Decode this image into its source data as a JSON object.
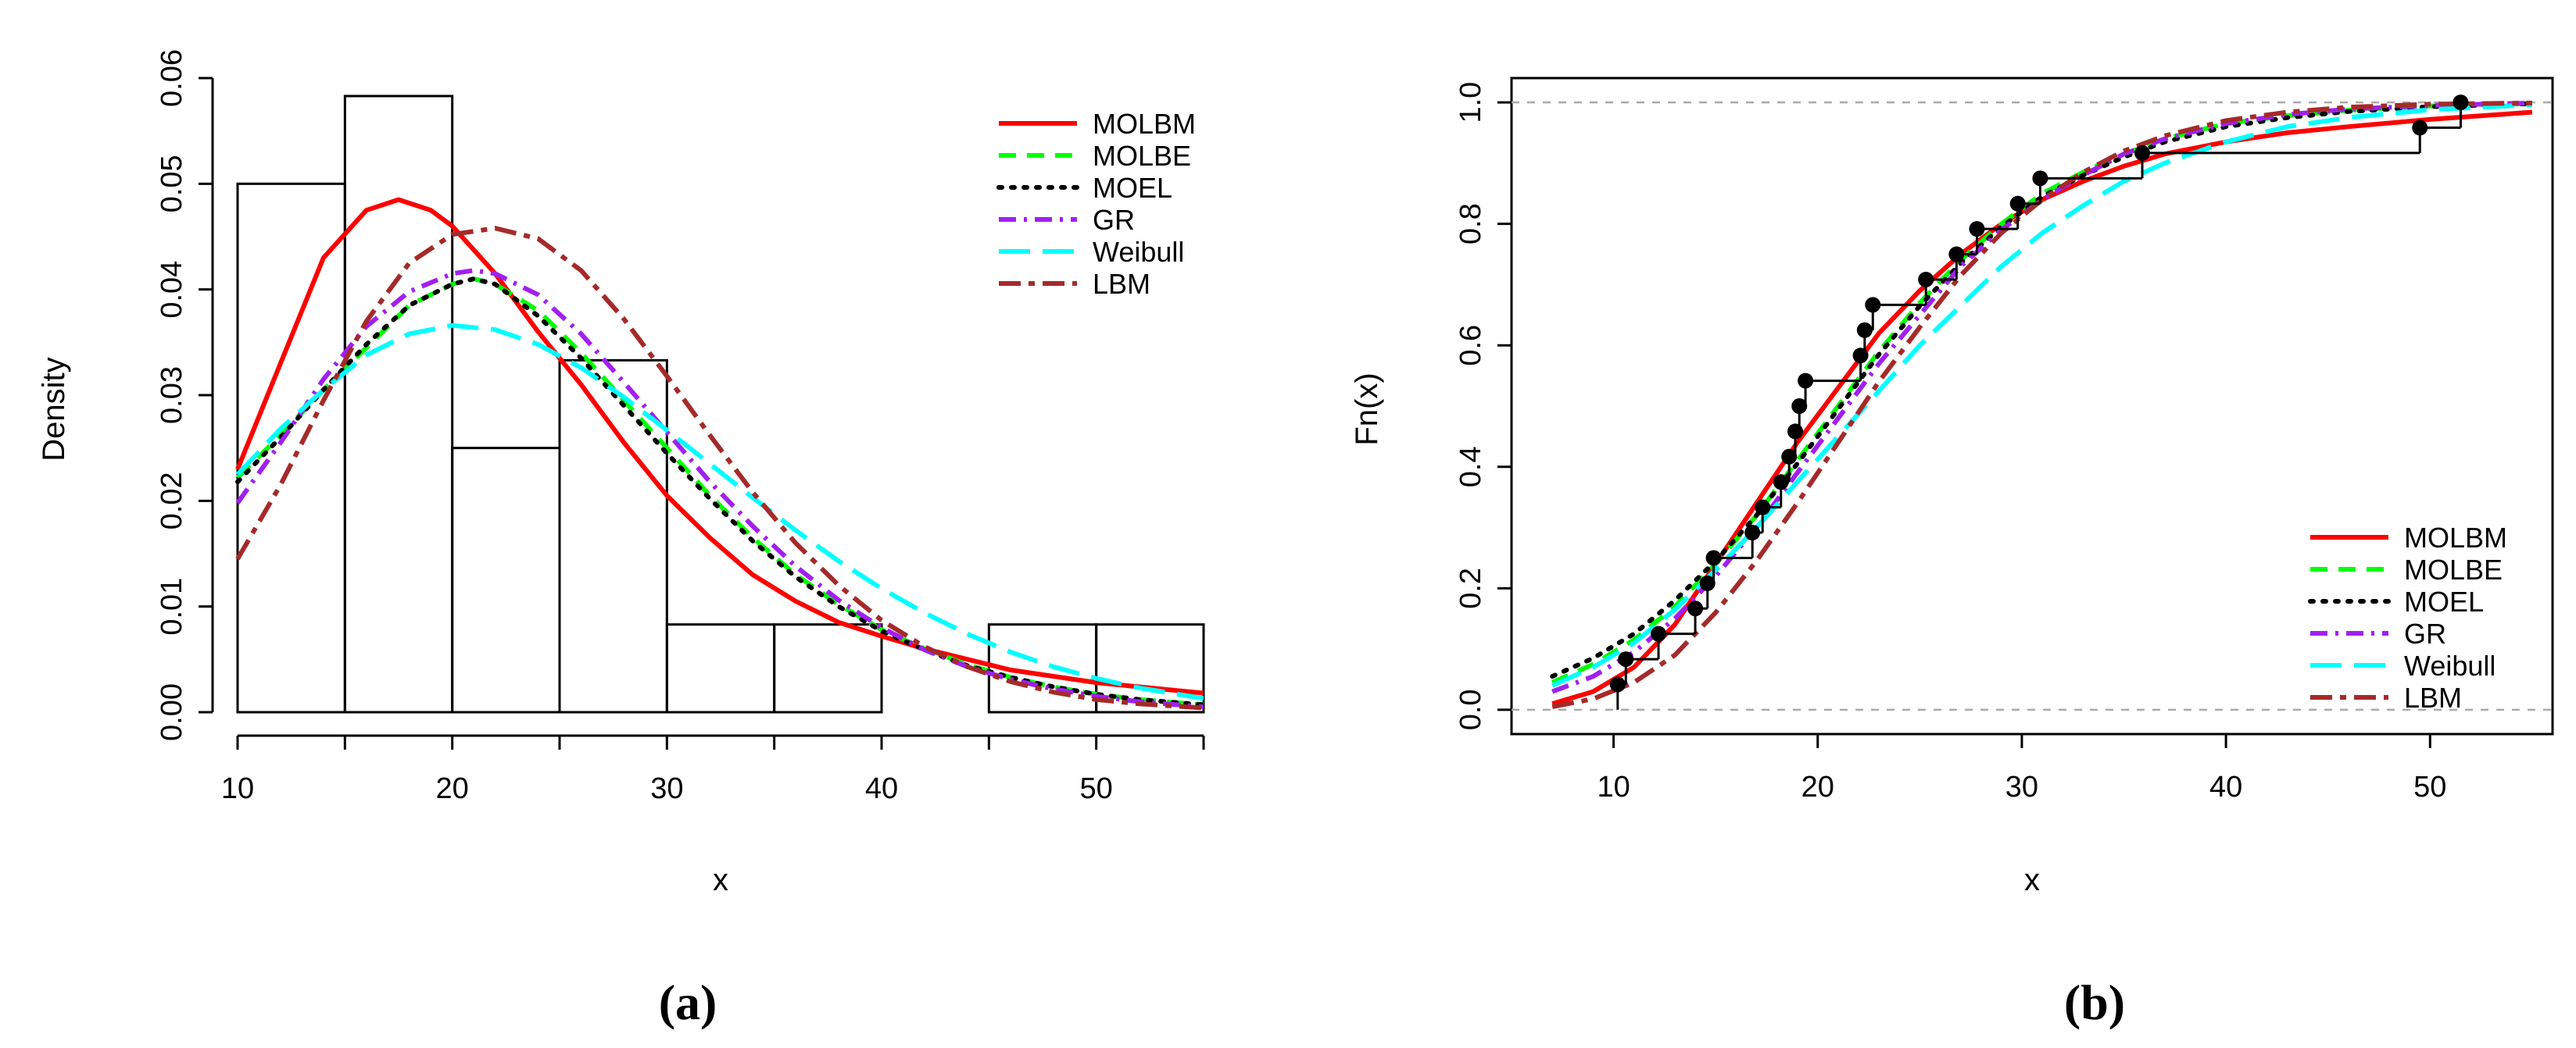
{
  "chart_data": [
    {
      "id": "a",
      "type": "histogram",
      "caption": "(a)",
      "xlabel": "x",
      "ylabel": "Density",
      "xlim": [
        10,
        55
      ],
      "ylim": [
        0,
        0.06
      ],
      "x_ticks": [
        10,
        20,
        30,
        40,
        50
      ],
      "y_ticks": [
        "0.00",
        "0.01",
        "0.02",
        "0.03",
        "0.04",
        "0.05",
        "0.06"
      ],
      "legend_position": "top-right",
      "bins": [
        {
          "from": 10,
          "to": 15,
          "density": 0.05
        },
        {
          "from": 15,
          "to": 20,
          "density": 0.0583
        },
        {
          "from": 20,
          "to": 25,
          "density": 0.025
        },
        {
          "from": 25,
          "to": 30,
          "density": 0.0333
        },
        {
          "from": 30,
          "to": 35,
          "density": 0.0083
        },
        {
          "from": 35,
          "to": 40,
          "density": 0.0083
        },
        {
          "from": 40,
          "to": 45,
          "density": 0.0
        },
        {
          "from": 45,
          "to": 50,
          "density": 0.0083
        },
        {
          "from": 50,
          "to": 55,
          "density": 0.0083
        }
      ],
      "series": [
        {
          "name": "MOLBM",
          "color": "#ff0000",
          "style": "solid",
          "x": [
            10,
            12,
            14,
            16,
            17.5,
            19,
            20,
            22,
            24,
            26,
            28,
            30,
            32,
            34,
            36,
            38,
            40,
            42,
            44,
            46,
            48,
            50,
            52,
            55
          ],
          "y": [
            0.023,
            0.033,
            0.043,
            0.0475,
            0.0485,
            0.0475,
            0.046,
            0.0415,
            0.036,
            0.031,
            0.0255,
            0.0205,
            0.0165,
            0.013,
            0.0105,
            0.0085,
            0.0072,
            0.006,
            0.005,
            0.004,
            0.0034,
            0.0028,
            0.0024,
            0.0018
          ]
        },
        {
          "name": "MOLBE",
          "color": "#00ff00",
          "style": "dashed",
          "x": [
            10,
            12,
            14,
            16,
            18,
            20,
            21,
            22,
            24,
            26,
            28,
            30,
            32,
            34,
            36,
            38,
            40,
            42,
            44,
            46,
            48,
            50,
            52,
            55
          ],
          "y": [
            0.0222,
            0.0262,
            0.0305,
            0.0345,
            0.0385,
            0.0405,
            0.041,
            0.0405,
            0.038,
            0.034,
            0.0295,
            0.025,
            0.0205,
            0.0165,
            0.013,
            0.0102,
            0.0078,
            0.006,
            0.0045,
            0.0033,
            0.0024,
            0.0017,
            0.0012,
            0.0007
          ]
        },
        {
          "name": "MOEL",
          "color": "#000000",
          "style": "dotted",
          "x": [
            10,
            12,
            14,
            16,
            18,
            20,
            21,
            22,
            24,
            26,
            28,
            30,
            32,
            34,
            36,
            38,
            40,
            42,
            44,
            46,
            48,
            50,
            52,
            55
          ],
          "y": [
            0.0218,
            0.026,
            0.0305,
            0.0348,
            0.0385,
            0.0405,
            0.041,
            0.0405,
            0.0375,
            0.0335,
            0.029,
            0.0245,
            0.0202,
            0.0162,
            0.0128,
            0.01,
            0.0077,
            0.0059,
            0.0044,
            0.0033,
            0.0024,
            0.0017,
            0.0012,
            0.0007
          ]
        },
        {
          "name": "GR",
          "color": "#a020f0",
          "style": "dashdot",
          "x": [
            10,
            12,
            14,
            16,
            18,
            20,
            21,
            22,
            24,
            26,
            28,
            30,
            32,
            34,
            36,
            38,
            40,
            42,
            44,
            46,
            48,
            50,
            52,
            55
          ],
          "y": [
            0.0198,
            0.0255,
            0.0315,
            0.0365,
            0.0398,
            0.0415,
            0.0418,
            0.0415,
            0.0395,
            0.0358,
            0.0312,
            0.0265,
            0.0218,
            0.0176,
            0.0138,
            0.0106,
            0.008,
            0.0059,
            0.0043,
            0.0031,
            0.0022,
            0.0015,
            0.001,
            0.0005
          ]
        },
        {
          "name": "Weibull",
          "color": "#00ffff",
          "style": "longdash",
          "x": [
            10,
            12,
            14,
            16,
            18,
            20,
            22,
            24,
            26,
            28,
            30,
            32,
            34,
            36,
            38,
            40,
            42,
            44,
            46,
            48,
            50,
            52,
            55
          ],
          "y": [
            0.0225,
            0.0268,
            0.0305,
            0.0338,
            0.0358,
            0.0366,
            0.0362,
            0.0348,
            0.0326,
            0.0298,
            0.0267,
            0.0235,
            0.0203,
            0.0172,
            0.0143,
            0.0117,
            0.0094,
            0.0074,
            0.0057,
            0.0043,
            0.0032,
            0.0023,
            0.0013
          ]
        },
        {
          "name": "LBM",
          "color": "#a52a2a",
          "style": "twodash",
          "x": [
            10,
            12,
            14,
            16,
            18,
            20,
            22,
            24,
            26,
            28,
            30,
            32,
            34,
            36,
            38,
            40,
            42,
            44,
            46,
            48,
            50,
            52,
            55
          ],
          "y": [
            0.0145,
            0.0215,
            0.0295,
            0.037,
            0.0425,
            0.0452,
            0.0458,
            0.0448,
            0.0418,
            0.0372,
            0.0318,
            0.0262,
            0.0208,
            0.016,
            0.012,
            0.0087,
            0.0062,
            0.0043,
            0.0029,
            0.0019,
            0.0012,
            0.0008,
            0.0004
          ]
        }
      ]
    },
    {
      "id": "b",
      "type": "line",
      "caption": "(b)",
      "xlabel": "x",
      "ylabel": "Fn(x)",
      "xlim": [
        5,
        56
      ],
      "ylim": [
        -0.04,
        1.04
      ],
      "x_ticks": [
        10,
        20,
        30,
        40,
        50
      ],
      "y_ticks": [
        "0.0",
        "0.2",
        "0.4",
        "0.6",
        "0.8",
        "1.0"
      ],
      "legend_position": "bottom-right",
      "reference_lines": [
        0,
        1
      ],
      "ecdf": {
        "x": [
          10.2,
          10.6,
          12.2,
          14.0,
          14.6,
          14.9,
          16.8,
          17.3,
          18.2,
          18.6,
          18.9,
          19.1,
          19.4,
          22.1,
          22.3,
          22.7,
          25.3,
          26.8,
          27.8,
          29.8,
          30.9,
          35.9,
          49.5,
          51.5
        ],
        "y": [
          0.0417,
          0.0833,
          0.125,
          0.1667,
          0.2083,
          0.25,
          0.2917,
          0.3333,
          0.375,
          0.4167,
          0.4583,
          0.5,
          0.5417,
          0.5833,
          0.625,
          0.6667,
          0.7083,
          0.75,
          0.7917,
          0.8333,
          0.875,
          0.9167,
          0.9583,
          1.0
        ]
      },
      "series": [
        {
          "name": "MOLBM",
          "color": "#ff0000",
          "style": "solid",
          "x": [
            7,
            9,
            11,
            13,
            15,
            17,
            19,
            21,
            23,
            25,
            27,
            29,
            31,
            33,
            35,
            37,
            40,
            43,
            46,
            50,
            55
          ],
          "y": [
            0.01,
            0.03,
            0.07,
            0.14,
            0.24,
            0.34,
            0.44,
            0.53,
            0.62,
            0.69,
            0.75,
            0.8,
            0.84,
            0.87,
            0.895,
            0.915,
            0.935,
            0.95,
            0.96,
            0.972,
            0.984
          ]
        },
        {
          "name": "MOLBE",
          "color": "#00ff00",
          "style": "dashed",
          "x": [
            7,
            9,
            11,
            13,
            15,
            17,
            19,
            21,
            23,
            25,
            27,
            29,
            31,
            33,
            35,
            37,
            40,
            43,
            46,
            50,
            55
          ],
          "y": [
            0.045,
            0.075,
            0.115,
            0.17,
            0.24,
            0.32,
            0.41,
            0.5,
            0.59,
            0.67,
            0.74,
            0.8,
            0.85,
            0.885,
            0.915,
            0.94,
            0.965,
            0.978,
            0.987,
            0.994,
            0.998
          ]
        },
        {
          "name": "MOEL",
          "color": "#000000",
          "style": "dotted",
          "x": [
            7,
            9,
            11,
            13,
            15,
            17,
            19,
            21,
            23,
            25,
            27,
            29,
            31,
            33,
            35,
            37,
            40,
            43,
            46,
            50,
            55
          ],
          "y": [
            0.055,
            0.085,
            0.125,
            0.18,
            0.245,
            0.32,
            0.405,
            0.495,
            0.585,
            0.665,
            0.735,
            0.795,
            0.845,
            0.88,
            0.91,
            0.935,
            0.96,
            0.975,
            0.985,
            0.993,
            0.998
          ]
        },
        {
          "name": "GR",
          "color": "#a020f0",
          "style": "dashdot",
          "x": [
            7,
            9,
            11,
            13,
            15,
            17,
            19,
            21,
            23,
            25,
            27,
            29,
            31,
            33,
            35,
            37,
            40,
            43,
            46,
            50,
            55
          ],
          "y": [
            0.03,
            0.055,
            0.095,
            0.15,
            0.22,
            0.3,
            0.39,
            0.48,
            0.57,
            0.65,
            0.73,
            0.79,
            0.84,
            0.88,
            0.915,
            0.94,
            0.965,
            0.98,
            0.989,
            0.995,
            0.999
          ]
        },
        {
          "name": "Weibull",
          "color": "#00ffff",
          "style": "longdash",
          "x": [
            7,
            9,
            11,
            13,
            15,
            17,
            19,
            21,
            23,
            25,
            27,
            29,
            31,
            33,
            35,
            37,
            40,
            43,
            46,
            50,
            55
          ],
          "y": [
            0.04,
            0.07,
            0.11,
            0.165,
            0.23,
            0.3,
            0.375,
            0.45,
            0.525,
            0.6,
            0.665,
            0.73,
            0.785,
            0.83,
            0.87,
            0.9,
            0.935,
            0.96,
            0.975,
            0.988,
            0.996
          ]
        },
        {
          "name": "LBM",
          "color": "#a52a2a",
          "style": "twodash",
          "x": [
            7,
            9,
            11,
            13,
            15,
            17,
            19,
            21,
            23,
            25,
            27,
            29,
            31,
            33,
            35,
            37,
            40,
            43,
            46,
            50,
            55
          ],
          "y": [
            0.005,
            0.018,
            0.045,
            0.09,
            0.16,
            0.245,
            0.34,
            0.44,
            0.54,
            0.63,
            0.715,
            0.785,
            0.84,
            0.885,
            0.92,
            0.945,
            0.97,
            0.984,
            0.992,
            0.997,
            0.999
          ]
        }
      ]
    }
  ]
}
